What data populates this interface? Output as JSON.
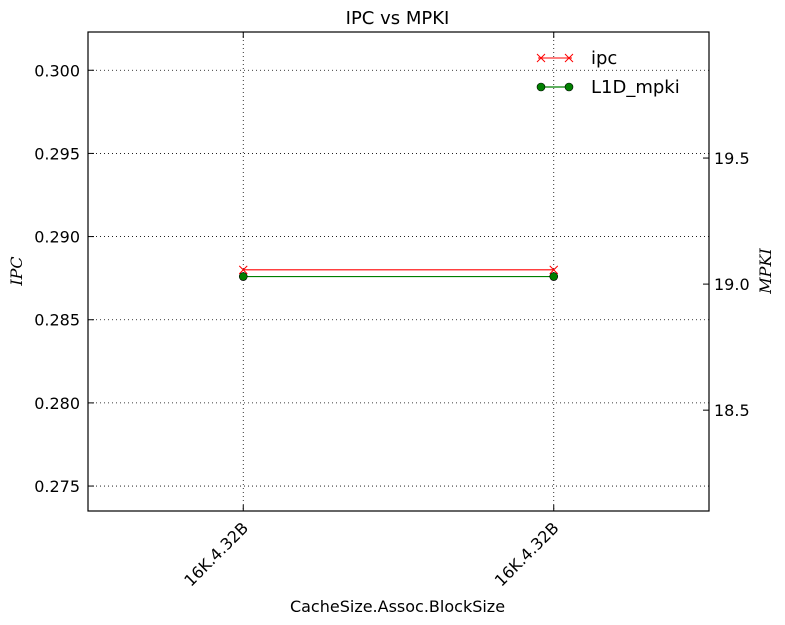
{
  "chart_data": {
    "type": "line",
    "title": "IPC vs MPKI",
    "xlabel": "CacheSize.Assoc.BlockSize",
    "ylabel_left": "IPC",
    "ylabel_right": "MPKI",
    "categories": [
      "16K.4.32B",
      "16K.4.32B"
    ],
    "x": [
      0,
      1
    ],
    "xlim": [
      -0.5,
      1.5
    ],
    "ylim_left": [
      0.2735,
      0.3023
    ],
    "yticks_left": [
      0.275,
      0.28,
      0.285,
      0.29,
      0.295,
      0.3
    ],
    "ytick_labels_left": [
      "0.275",
      "0.280",
      "0.285",
      "0.290",
      "0.295",
      "0.300"
    ],
    "ylim_right": [
      18.1,
      20.0
    ],
    "yticks_right": [
      18.5,
      19.0,
      19.5
    ],
    "ytick_labels_right": [
      "18.5",
      "19.0",
      "19.5"
    ],
    "grid": true,
    "legend_position": "top-right",
    "series": [
      {
        "name": "ipc",
        "axis": "left",
        "values": [
          0.288,
          0.288
        ],
        "color": "#ff0000",
        "marker": "x"
      },
      {
        "name": "L1D_mpki",
        "axis": "right",
        "values": [
          19.03,
          19.03
        ],
        "color": "#008000",
        "marker": "o"
      }
    ]
  }
}
